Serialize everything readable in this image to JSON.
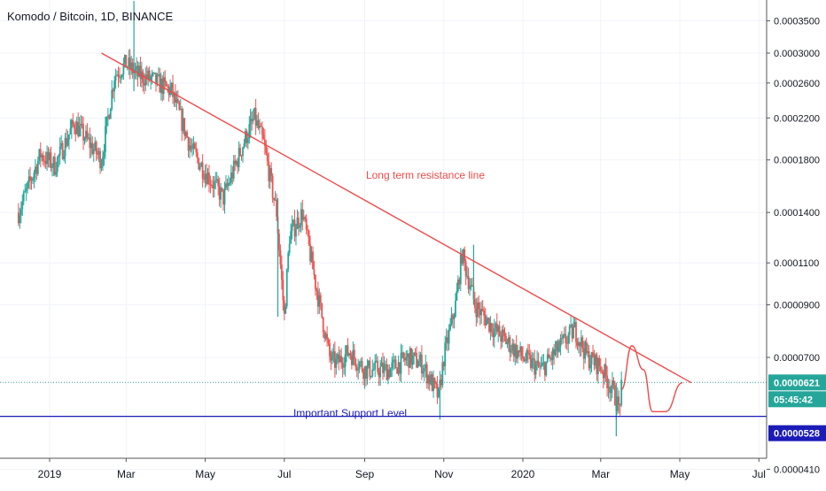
{
  "header": {
    "title": "Komodo / Bitcoin, 1D, BINANCE"
  },
  "colors": {
    "up": "#26a69a",
    "down": "#ef5350",
    "resistance": "#f04a4a",
    "support": "#1b1bb8",
    "dotted": "#26a69a",
    "price_label_bg": "#26a69a",
    "support_label_bg": "#1b1bb8",
    "grid": "#f0f3fa",
    "axis_text": "#131722"
  },
  "chart_data": {
    "type": "candlestick",
    "title": "Komodo / Bitcoin, 1D, BINANCE",
    "scale": "log",
    "ylim": [
      3.4e-05,
      0.00036
    ],
    "x_ticks": [
      "2019",
      "Mar",
      "May",
      "Jul",
      "Sep",
      "Nov",
      "2020",
      "Mar",
      "May",
      "Jul"
    ],
    "y_ticks": [
      "0.0003500",
      "0.0003000",
      "0.0002600",
      "0.0002200",
      "0.0001800",
      "0.0001400",
      "0.0001100",
      "0.0000900",
      "0.0000700",
      "0.0000410"
    ],
    "last_price": "0.0000621",
    "countdown": "05:45:42",
    "support_price": "0.0000528",
    "annotations": {
      "resistance_label": "Long term resistance line",
      "support_label": "Important Support Level"
    },
    "anchors": {
      "dates": [
        "2018-12-08",
        "2018-12-25",
        "2019-01-05",
        "2019-01-20",
        "2019-02-10",
        "2019-02-20",
        "2019-03-01",
        "2019-03-10",
        "2019-03-20",
        "2019-04-05",
        "2019-04-20",
        "2019-05-01",
        "2019-05-15",
        "2019-06-01",
        "2019-06-08",
        "2019-06-15",
        "2019-06-25",
        "2019-07-01",
        "2019-07-05",
        "2019-07-15",
        "2019-07-25",
        "2019-08-05",
        "2019-08-10",
        "2019-08-20",
        "2019-09-01",
        "2019-09-20",
        "2019-10-05",
        "2019-10-15",
        "2019-10-28",
        "2019-11-01",
        "2019-11-10",
        "2019-11-15",
        "2019-11-25",
        "2019-12-10",
        "2020-01-01",
        "2020-01-15",
        "2020-02-01",
        "2020-02-10",
        "2020-02-20",
        "2020-03-01",
        "2020-03-10",
        "2020-03-15",
        "2020-03-17"
      ],
      "close": [
        0.00014,
        0.000185,
        0.000175,
        0.000215,
        0.00018,
        0.00027,
        0.000285,
        0.00027,
        0.000265,
        0.00025,
        0.00019,
        0.00017,
        0.00015,
        0.0002,
        0.00022,
        0.000195,
        0.00014,
        8.5e-05,
        0.000125,
        0.00014,
        0.0001,
        7e-05,
        6.8e-05,
        7.2e-05,
        6.6e-05,
        6.6e-05,
        7e-05,
        6.8e-05,
        5.8e-05,
        7e-05,
        9e-05,
        0.000115,
        9e-05,
        8e-05,
        7e-05,
        6.6e-05,
        7.5e-05,
        8e-05,
        7e-05,
        6.7e-05,
        6e-05,
        5.5e-05,
        6e-05
      ]
    },
    "spikes": [
      {
        "date": "2019-03-07",
        "high": 0.000385,
        "low": 0.00025
      },
      {
        "date": "2019-06-05",
        "high": 0.00023,
        "low": 0.0002
      },
      {
        "date": "2019-11-24",
        "high": 0.00012,
        "low": 9e-05
      },
      {
        "date": "2019-06-26",
        "high": 0.00015,
        "low": 8.5e-05
      },
      {
        "date": "2019-10-29",
        "high": 6e-05,
        "low": 5.2e-05
      },
      {
        "date": "2020-03-13",
        "high": 6.2e-05,
        "low": 4.8e-05
      }
    ],
    "resistance_line": [
      {
        "date": "2019-02-10",
        "price": 0.0003
      },
      {
        "date": "2020-05-10",
        "price": 6.2e-05
      }
    ],
    "projection": [
      {
        "date": "2020-03-17",
        "price": 6e-05
      },
      {
        "date": "2020-03-25",
        "price": 7.4e-05
      },
      {
        "date": "2020-04-03",
        "price": 6.6e-05
      },
      {
        "date": "2020-04-10",
        "price": 5.4e-05
      },
      {
        "date": "2020-04-20",
        "price": 5.4e-05
      },
      {
        "date": "2020-05-03",
        "price": 6.2e-05
      }
    ]
  }
}
